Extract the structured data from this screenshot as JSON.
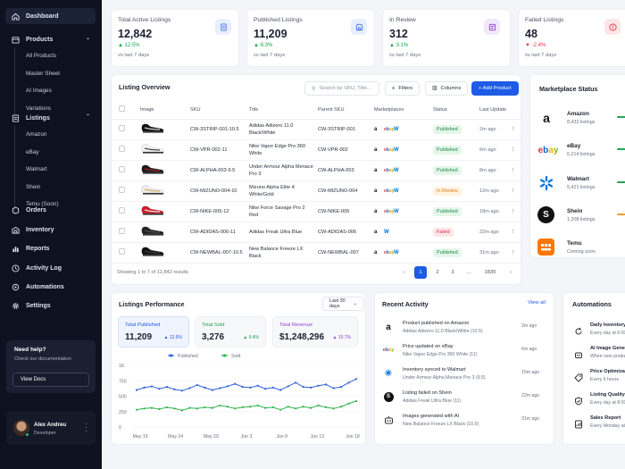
{
  "sidebar": {
    "nav": [
      {
        "label": "Dashboard",
        "icon": "home-icon"
      },
      {
        "label": "Products",
        "icon": "box-icon"
      },
      {
        "label": "Listings",
        "icon": "list-icon"
      },
      {
        "label": "Orders",
        "icon": "orders-icon"
      },
      {
        "label": "Inventory",
        "icon": "inventory-icon"
      },
      {
        "label": "Reports",
        "icon": "bar-chart-icon"
      },
      {
        "label": "Activity Log",
        "icon": "clock-icon"
      },
      {
        "label": "Automations",
        "icon": "zap-icon"
      },
      {
        "label": "Settings",
        "icon": "gear-icon"
      }
    ],
    "products_sub": [
      "All Products",
      "Master Sheet",
      "AI Images",
      "Variations"
    ],
    "listings_sub": [
      "Amazon",
      "eBay",
      "Walmart",
      "Shein",
      "Temu (Soon)"
    ],
    "help": {
      "title": "Need help?",
      "subtitle": "Check our documentation",
      "button": "View Docs"
    },
    "user": {
      "name": "Alex Andreu",
      "role": "Developer"
    }
  },
  "stats": [
    {
      "label": "Total Active Listings",
      "value": "12,842",
      "change": "12.5%",
      "direction": "up",
      "compare": "vs last 7 days",
      "icon": "listing-icon",
      "icon_color": "#3b6fe0",
      "icon_bg": "#e8eefc"
    },
    {
      "label": "Published Listings",
      "value": "11,209",
      "change": "8.3%",
      "direction": "up",
      "compare": "vs last 7 days",
      "icon": "store-icon",
      "icon_color": "#3b6fe0",
      "icon_bg": "#e8eefc"
    },
    {
      "label": "In Review",
      "value": "312",
      "change": "3.1%",
      "direction": "up",
      "compare": "vs last 7 days",
      "icon": "review-icon",
      "icon_color": "#8a3fd1",
      "icon_bg": "#f2e8fb"
    },
    {
      "label": "Failed Listings",
      "value": "48",
      "change": "-2.4%",
      "direction": "down",
      "compare": "vs last 7 days",
      "icon": "alert-icon",
      "icon_color": "#e0344a",
      "icon_bg": "#fde6e8"
    }
  ],
  "overview": {
    "title": "Listing Overview",
    "search_placeholder": "Search by SKU, Title...",
    "filters": "Filters",
    "columns": "Columns",
    "add": "+ Add Product",
    "headers": [
      "",
      "Image",
      "SKU",
      "Title",
      "Parent SKU",
      "Marketplaces",
      "Status",
      "Last Update",
      ""
    ],
    "rows": [
      {
        "sku": "CW-3STRIP-001-10.5",
        "title": "Adidas Adizero 11.0 Black/White",
        "parent": "CW-3STRIP-001",
        "markets": [
          "amazon",
          "ebay",
          "walmart"
        ],
        "status": "Published",
        "updated": "2m ago",
        "shoe": [
          "#111",
          "#fff"
        ]
      },
      {
        "sku": "CW-VPR-002-11",
        "title": "Nike Vapor Edge Pro 360 White",
        "parent": "CW-VPR-002",
        "markets": [
          "amazon",
          "ebay",
          "walmart"
        ],
        "status": "Published",
        "updated": "6m ago",
        "shoe": [
          "#f2f2f2",
          "#222"
        ]
      },
      {
        "sku": "CW-ALPHA-003-9.5",
        "title": "Under Armour Alpha Menace Pro 3",
        "parent": "CW-ALPHA-003",
        "markets": [
          "amazon",
          "ebay",
          "walmart"
        ],
        "status": "Published",
        "updated": "8m ago",
        "shoe": [
          "#1a1a1a",
          "#c0262e"
        ]
      },
      {
        "sku": "CW-MIZUNO-004-10",
        "title": "Mizuno Alpha Elite 4 White/Gold",
        "parent": "CW-MIZUNO-004",
        "markets": [
          "amazon",
          "ebay",
          "walmart"
        ],
        "status": "In Review",
        "updated": "12m ago",
        "shoe": [
          "#eee",
          "#c9a24a"
        ]
      },
      {
        "sku": "CW-NIKE-005-12",
        "title": "Nike Force Savage Pro 2 Red",
        "parent": "CW-NIKE-005",
        "markets": [
          "amazon",
          "ebay",
          "walmart"
        ],
        "status": "Published",
        "updated": "18m ago",
        "shoe": [
          "#c8202c",
          "#fff"
        ]
      },
      {
        "sku": "CW-ADIDAS-006-11",
        "title": "Adidas Freak Ultra Blue",
        "parent": "CW-ADIDAS-006",
        "markets": [
          "amazon",
          "walmart"
        ],
        "status": "Failed",
        "updated": "22m ago",
        "shoe": [
          "#222",
          "#555"
        ]
      },
      {
        "sku": "CW-NEWBAL-007-10.5",
        "title": "New Balance Freeze LX Black",
        "parent": "CW-NEWBAL-007",
        "markets": [
          "amazon",
          "ebay",
          "walmart"
        ],
        "status": "Published",
        "updated": "31m ago",
        "shoe": [
          "#111",
          "#444"
        ]
      }
    ],
    "showing": "Showing 1 to 7 of 12,842 results",
    "pages": [
      "‹",
      "1",
      "2",
      "3",
      "...",
      "1835",
      "›"
    ]
  },
  "marketplace": {
    "title": "Marketplace Status",
    "items": [
      {
        "name": "Amazon",
        "sub": "8,432 listings",
        "icon": "amazon-icon",
        "bar": "#1fa856"
      },
      {
        "name": "eBay",
        "sub": "6,214 listings",
        "icon": "ebay-icon",
        "bar": "#1fa856"
      },
      {
        "name": "Walmart",
        "sub": "5,421 listings",
        "icon": "walmart-icon",
        "bar": "#1fa856"
      },
      {
        "name": "Shein",
        "sub": "1,208 listings",
        "icon": "shein-icon",
        "bar": "#f0a32a"
      },
      {
        "name": "Temu",
        "sub": "Coming soon",
        "icon": "temu-icon",
        "bar": ""
      }
    ]
  },
  "performance": {
    "title": "Listings Performance",
    "range": "Last 30 days",
    "minis": [
      {
        "label": "Total Published",
        "value": "11,209",
        "change": "▲ 12.5%",
        "color": "#1e5be6",
        "bg": "#eef3fd"
      },
      {
        "label": "Total Sold",
        "value": "3,276",
        "change": "▲ 9.4%",
        "color": "#17a34a",
        "bg": "#f7f8fa"
      },
      {
        "label": "Total Revenue",
        "value": "$1,248,296",
        "change": "▲ 15.7%",
        "color": "#8a3fd1",
        "bg": "#f7f8fa"
      }
    ]
  },
  "chart_data": {
    "type": "line",
    "x_ticks": [
      "May 19",
      "May 24",
      "May 29",
      "Jun 3",
      "Jun 8",
      "Jun 13",
      "Jun 18"
    ],
    "y_ticks": [
      "1K",
      "750",
      "500",
      "250",
      "0"
    ],
    "ylim": [
      0,
      1000
    ],
    "legend": "top-center",
    "series": [
      {
        "name": "Published",
        "color": "#2f5fd8",
        "values": [
          600,
          640,
          660,
          620,
          650,
          610,
          590,
          630,
          680,
          640,
          600,
          630,
          660,
          700,
          650,
          640,
          670,
          620,
          640,
          600,
          660,
          720,
          650,
          640,
          670,
          690,
          630,
          650,
          720,
          780
        ]
      },
      {
        "name": "Sold",
        "color": "#2fb34a",
        "values": [
          280,
          300,
          310,
          290,
          320,
          300,
          270,
          310,
          300,
          320,
          310,
          350,
          330,
          300,
          320,
          330,
          350,
          310,
          320,
          280,
          330,
          300,
          330,
          310,
          350,
          320,
          300,
          330,
          380,
          420
        ]
      }
    ]
  },
  "activity": {
    "title": "Recent Activity",
    "view_all": "View all",
    "items": [
      {
        "icon": "amazon-icon",
        "title": "Product published on Amazon",
        "sub": "Adidas Adizero 11.0 Black/White (10.5)",
        "time": "2m ago"
      },
      {
        "icon": "ebay-icon",
        "title": "Price updated on eBay",
        "sub": "Nike Vapor Edge Pro 360 White (11)",
        "time": "6m ago"
      },
      {
        "icon": "walmart-icon",
        "title": "Inventory synced to Walmart",
        "sub": "Under Armour Alpha Menace Pro 3 (9.5)",
        "time": "15m ago"
      },
      {
        "icon": "shein-icon",
        "title": "Listing failed on Shein",
        "sub": "Adidas Freak Ultra Blue (11)",
        "time": "22m ago"
      },
      {
        "icon": "robot-icon",
        "title": "Images generated with AI",
        "sub": "New Balance Freeze LX Black (10.5)",
        "time": "31m ago"
      }
    ]
  },
  "automations": {
    "title": "Automations",
    "items": [
      {
        "title": "Daily Inventory S",
        "sub": "Every day at 6:00",
        "icon": "refresh-icon"
      },
      {
        "title": "AI Image Genera",
        "sub": "When new product",
        "icon": "robot-icon"
      },
      {
        "title": "Price Optimizati",
        "sub": "Every 6 hours",
        "icon": "tag-icon"
      },
      {
        "title": "Listing Quality C",
        "sub": "Every day at 8:00",
        "icon": "shield-icon"
      },
      {
        "title": "Sales Report",
        "sub": "Every Monday at",
        "icon": "report-icon"
      }
    ]
  }
}
